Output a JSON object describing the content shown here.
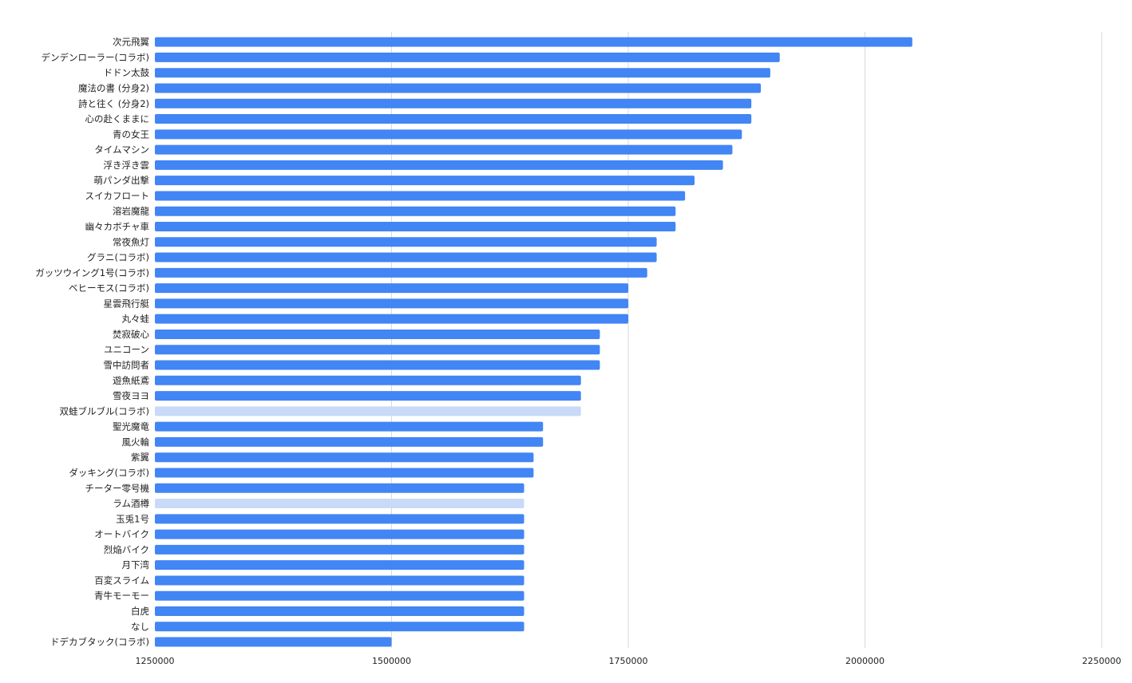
{
  "chart_data": {
    "type": "bar",
    "orientation": "horizontal",
    "title": "",
    "xlabel": "",
    "ylabel": "",
    "xlim": [
      1250000,
      2250000
    ],
    "xticks": [
      1250000,
      1500000,
      1750000,
      2000000,
      2250000
    ],
    "xtick_labels": [
      "1250000",
      "1500000",
      "1750000",
      "2000000",
      "2250000"
    ],
    "grid": true,
    "legend": "none",
    "colors": {
      "bar": "#4285f4",
      "bar_highlight": "#c9daf8"
    },
    "categories": [
      "次元飛翼",
      "デンデンローラー(コラボ)",
      "ドドン太鼓",
      "魔法の書 (分身2)",
      "詩と往く (分身2)",
      "心の赴くままに",
      "青の女王",
      "タイムマシン",
      "浮き浮き雲",
      "萌パンダ出撃",
      "スイカフロート",
      "溶岩魔龍",
      "幽々カボチャ車",
      "常夜魚灯",
      "グラニ(コラボ)",
      "ガッツウイング1号(コラボ)",
      "ベヒーモス(コラボ)",
      "星雲飛行艇",
      "丸々蛙",
      "焚寂破心",
      "ユニコーン",
      "雪中訪問者",
      "遊魚紙鳶",
      "雪夜ヨヨ",
      "双蛙ブルブル(コラボ)",
      "聖光魔竜",
      "風火輪",
      "紫翼",
      "ダッキング(コラボ)",
      "チーター零号機",
      "ラム酒樽",
      "玉兎1号",
      "オートバイク",
      "烈焔バイク",
      "月下湾",
      "百変スライム",
      "青牛モーモー",
      "白虎",
      "なし",
      "ドデカブタック(コラボ)"
    ],
    "values": [
      2050000,
      1910000,
      1900000,
      1890000,
      1880000,
      1880000,
      1870000,
      1860000,
      1850000,
      1820000,
      1810000,
      1800000,
      1800000,
      1780000,
      1780000,
      1770000,
      1750000,
      1750000,
      1750000,
      1720000,
      1720000,
      1720000,
      1700000,
      1700000,
      1700000,
      1660000,
      1660000,
      1650000,
      1650000,
      1640000,
      1640000,
      1640000,
      1640000,
      1640000,
      1640000,
      1640000,
      1640000,
      1640000,
      1640000,
      1500000
    ],
    "highlighted": [
      "双蛙ブルブル(コラボ)",
      "ラム酒樽"
    ]
  }
}
